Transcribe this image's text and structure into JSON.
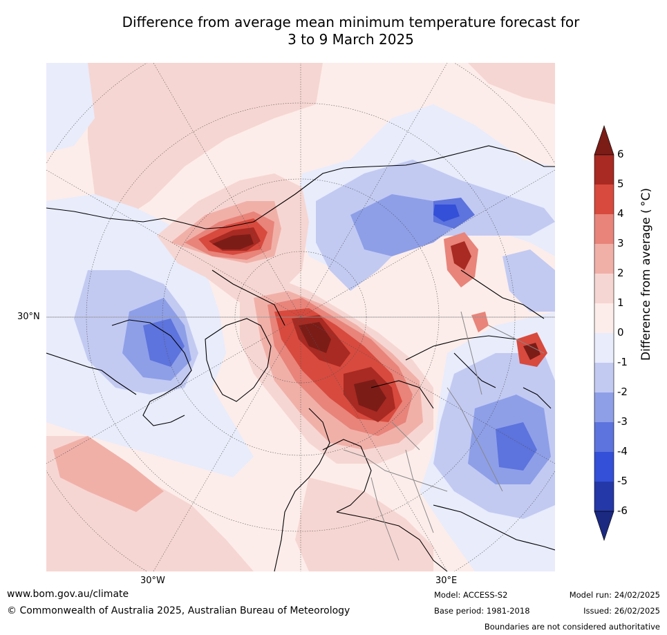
{
  "title_line1": "Difference from average mean minimum temperature forecast for",
  "title_line2": "3 to 9 March 2025",
  "map": {
    "lon_labels": [
      "30°W",
      "30°E"
    ],
    "lat_label": "30°N"
  },
  "legend": {
    "title": "Difference from average (°C)",
    "title_display": "Difference from average ( °C)",
    "ticks": [
      "6",
      "5",
      "4",
      "3",
      "2",
      "1",
      "0",
      "-1",
      "-2",
      "-3",
      "-4",
      "-5",
      "-6"
    ],
    "colors": [
      "#7b1c17",
      "#a82a22",
      "#d84a3e",
      "#e8847a",
      "#f0b0a8",
      "#f6d6d2",
      "#fcedea",
      "#e8ecfb",
      "#c2caf2",
      "#8e9fe8",
      "#5d73dd",
      "#3450d8",
      "#2538a8",
      "#1b2a80"
    ]
  },
  "footer": {
    "website": "www.bom.gov.au/climate",
    "copyright": "© Commonwealth of Australia 2025, Australian Bureau of Meteorology",
    "model": "Model: ACCESS-S2",
    "base_period": "Base period: 1981-2018",
    "model_run": "Model run: 24/02/2025",
    "issued": "Issued: 26/02/2025",
    "disclaimer": "Boundaries are not considered authoritative"
  }
}
